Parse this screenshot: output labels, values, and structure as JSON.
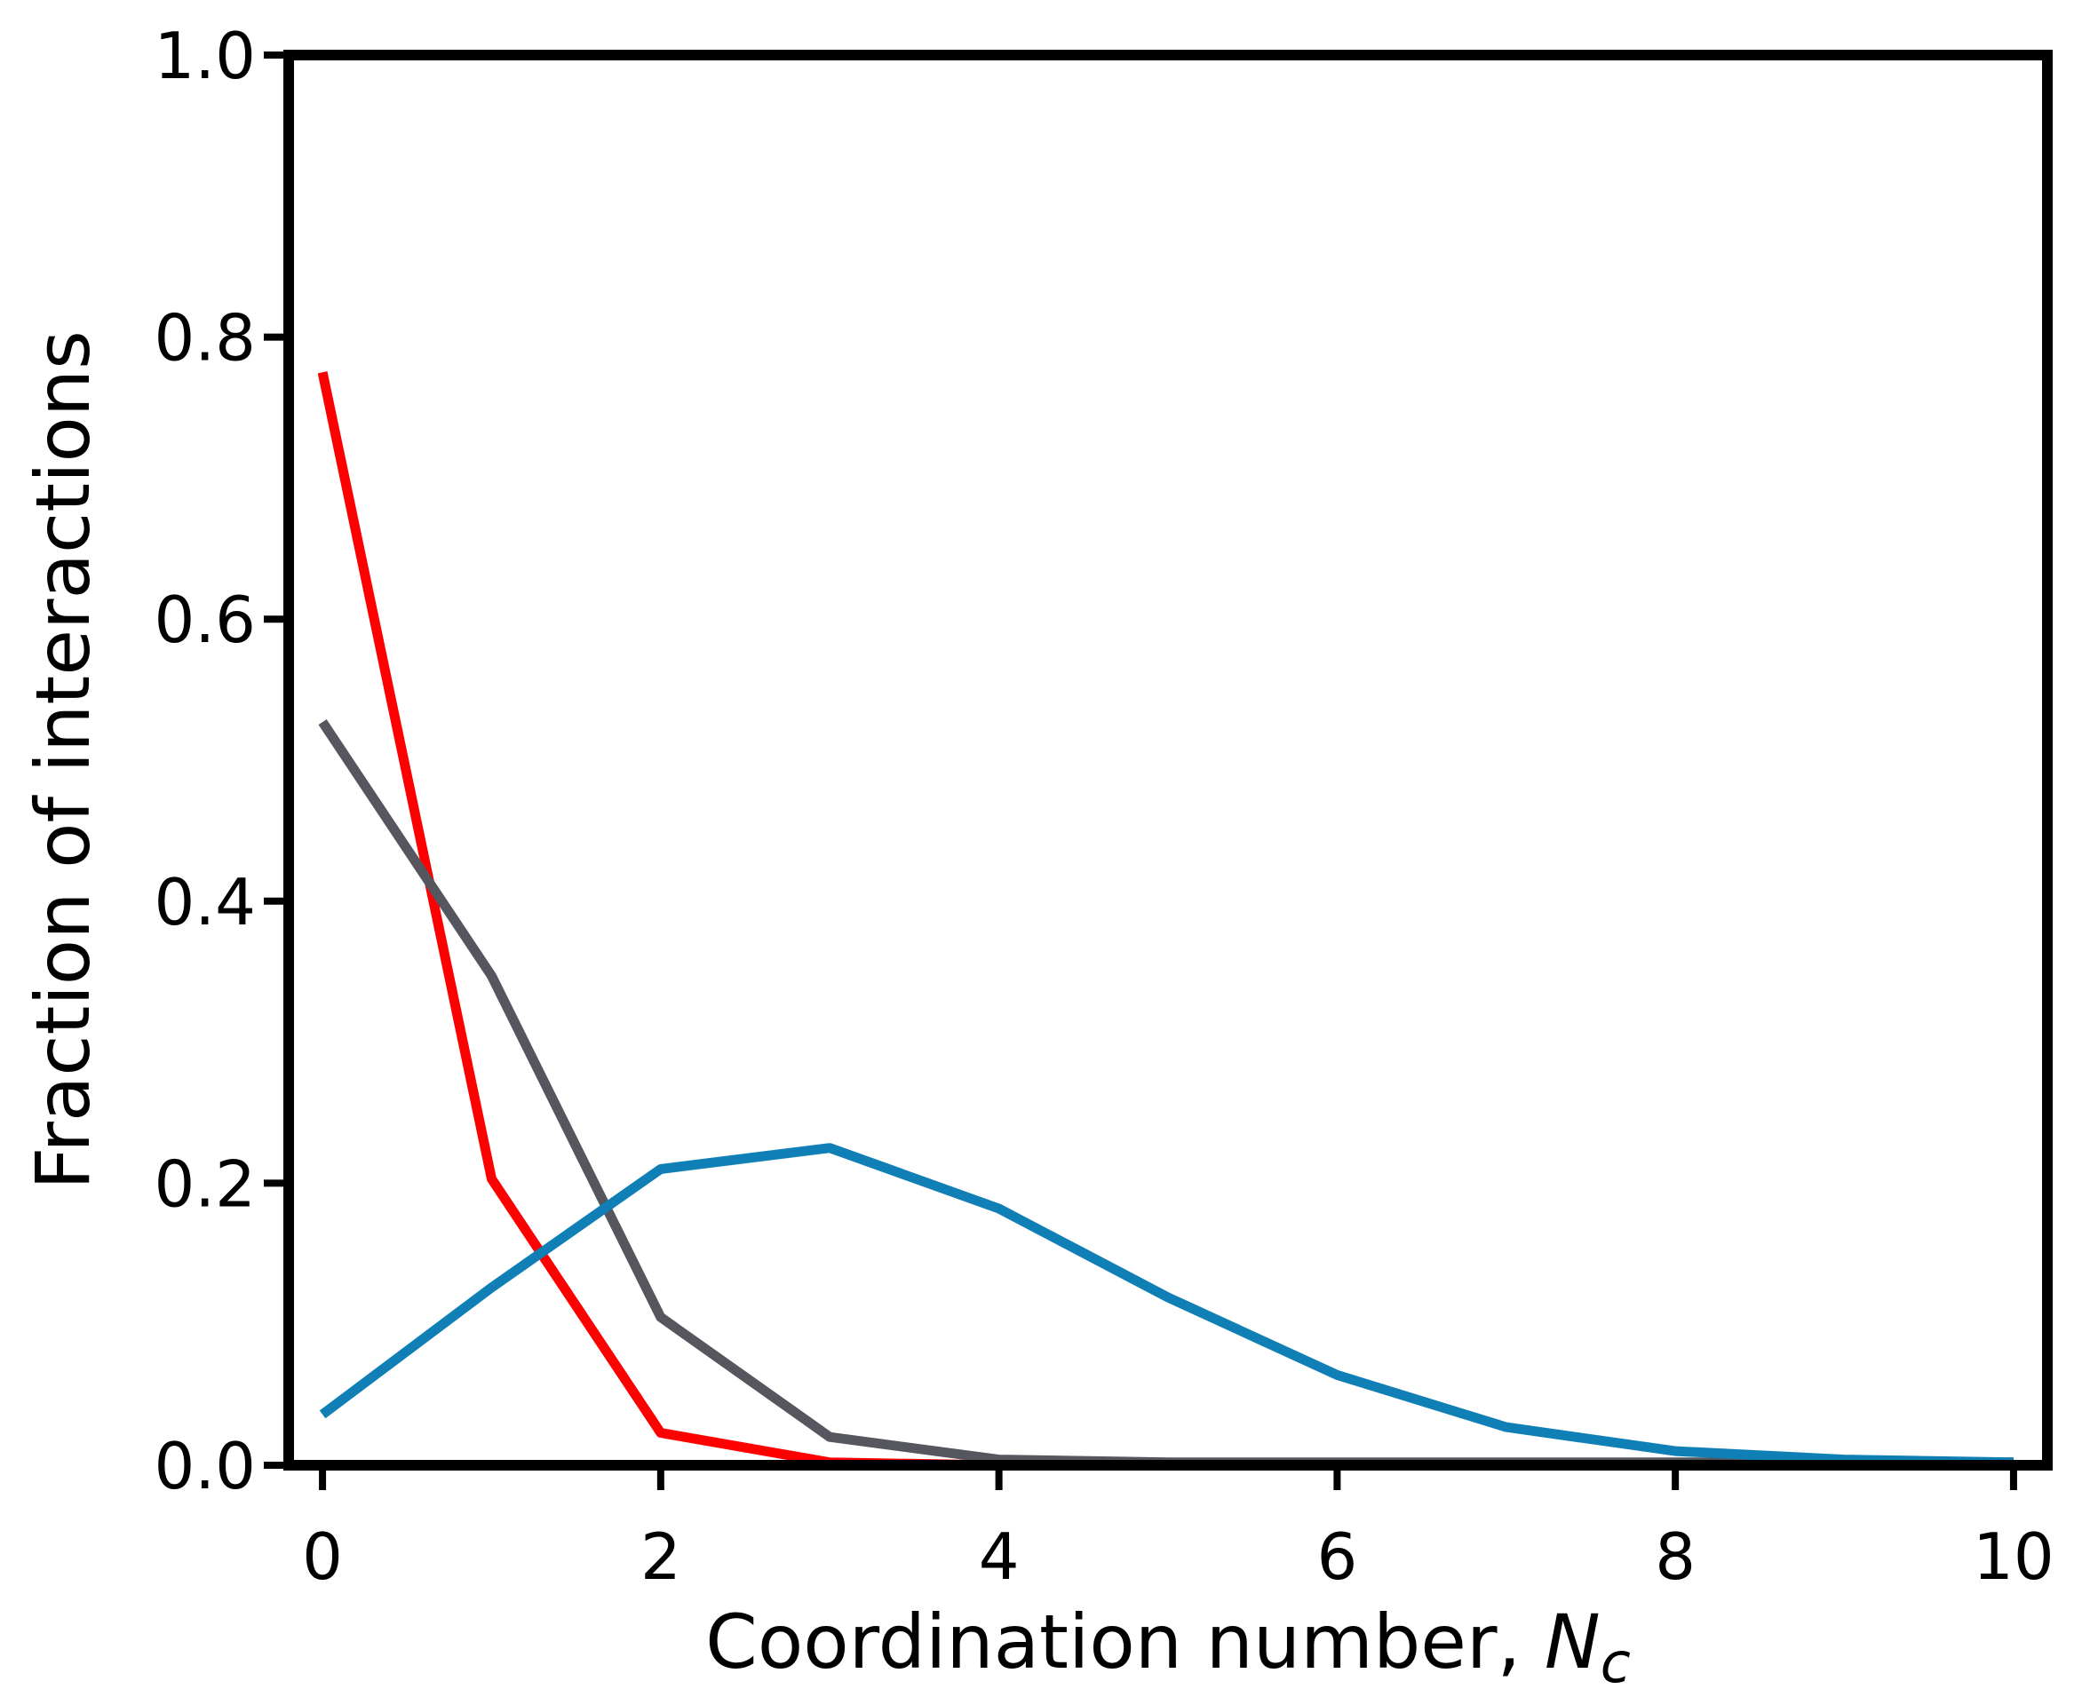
{
  "chart_data": {
    "type": "line",
    "title": "",
    "xlabel": "Coordination number, ",
    "xlabel_symbol": "N",
    "xlabel_subscript": "c",
    "ylabel": "Fraction of interactions",
    "xlim": [
      -0.2,
      10.2
    ],
    "ylim": [
      0.0,
      1.0
    ],
    "xticks": [
      0,
      2,
      4,
      6,
      8,
      10
    ],
    "xtick_labels": [
      "0",
      "2",
      "4",
      "6",
      "8",
      "10"
    ],
    "yticks": [
      0.0,
      0.2,
      0.4,
      0.6,
      0.8,
      1.0
    ],
    "ytick_labels": [
      "0.0",
      "0.2",
      "0.4",
      "0.6",
      "0.8",
      "1.0"
    ],
    "grid": false,
    "legend": false,
    "series": [
      {
        "color": "#ff0000",
        "x": [
          0,
          1,
          2,
          3,
          4,
          5,
          6,
          7,
          8,
          9,
          10
        ],
        "y": [
          0.775,
          0.203,
          0.023,
          0.002,
          0.0,
          0.0,
          0.0,
          0.0,
          0.0,
          0.0,
          0.0
        ]
      },
      {
        "color": "#55565e",
        "x": [
          0,
          1,
          2,
          3,
          4,
          5,
          6,
          7,
          8,
          9,
          10
        ],
        "y": [
          0.527,
          0.347,
          0.105,
          0.02,
          0.004,
          0.002,
          0.002,
          0.002,
          0.002,
          0.002,
          0.002
        ]
      },
      {
        "color": "#0f7fb6",
        "x": [
          0,
          1,
          2,
          3,
          4,
          5,
          6,
          7,
          8,
          9,
          10
        ],
        "y": [
          0.036,
          0.126,
          0.21,
          0.225,
          0.182,
          0.119,
          0.064,
          0.027,
          0.01,
          0.004,
          0.002
        ]
      }
    ]
  }
}
